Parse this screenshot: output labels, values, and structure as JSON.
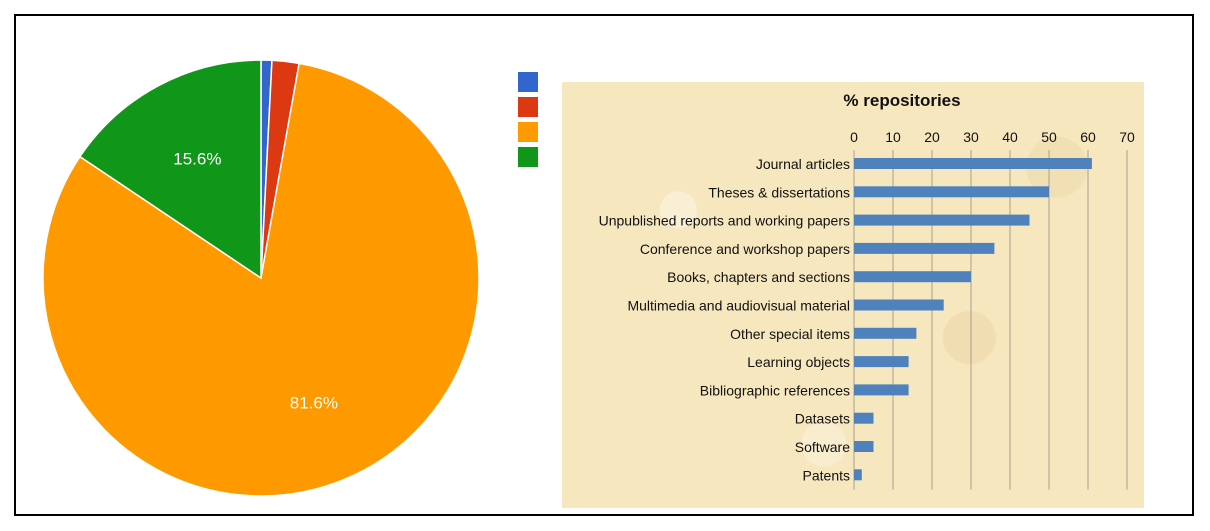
{
  "chart_data": [
    {
      "type": "pie",
      "slices": [
        {
          "value": 0.8,
          "color": "#3366cc",
          "label": ""
        },
        {
          "value": 2.0,
          "color": "#dc3912",
          "label": ""
        },
        {
          "value": 81.6,
          "color": "#ff9900",
          "label": "81.6%"
        },
        {
          "value": 15.6,
          "color": "#109618",
          "label": "15.6%"
        }
      ],
      "legend": {
        "placement": "right",
        "colors": [
          "#3366cc",
          "#dc3912",
          "#ff9900",
          "#109618"
        ]
      }
    },
    {
      "type": "bar",
      "orientation": "horizontal",
      "title": "% repositories",
      "categories": [
        "Journal articles",
        "Theses & dissertations",
        "Unpublished reports and working papers",
        "Conference and workshop papers",
        "Books, chapters and sections",
        "Multimedia and audiovisual material",
        "Other special items",
        "Learning objects",
        "Bibliographic references",
        "Datasets",
        "Software",
        "Patents"
      ],
      "values": [
        61,
        50,
        45,
        36,
        30,
        23,
        16,
        14,
        14,
        5,
        5,
        2
      ],
      "xlim": [
        0,
        70
      ],
      "xticks": [
        0,
        10,
        20,
        30,
        40,
        50,
        60,
        70
      ],
      "axis_position": "top",
      "grid": true,
      "bar_color": "#4f81bd"
    }
  ]
}
